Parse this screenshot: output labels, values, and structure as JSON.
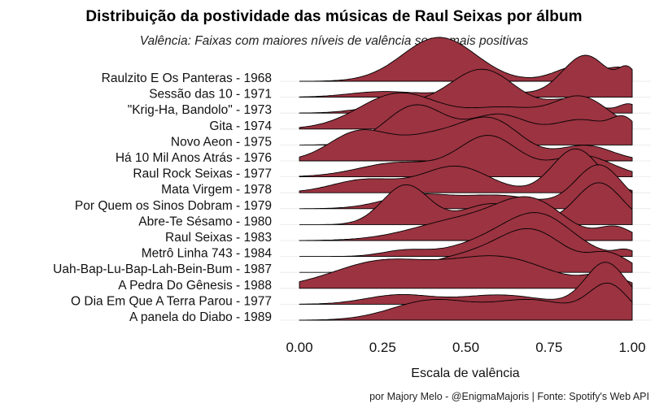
{
  "title": "Distribuição da postividade das músicas de Raul Seixas por álbum",
  "subtitle": "Valência: Faixas com maiores níveis de valência soam mais positivas",
  "caption": "por Majory Melo - @EnigmaMajoris | Fonte: Spotify's Web API",
  "colors": {
    "fill": "#9B3340",
    "outline": "#000000",
    "grid": "#e8e8e8"
  },
  "chart_data": {
    "type": "ridgeline",
    "xlabel": "Escala de valência",
    "xlim": [
      0,
      1
    ],
    "xticks": [
      "0.00",
      "0.25",
      "0.50",
      "0.75",
      "1.00"
    ],
    "grid": "horizontal baselines",
    "series": [
      {
        "name": "Raulzito E Os Panteras - 1968",
        "peaks": [
          [
            0.42,
            1.0,
            0.11
          ],
          [
            0.84,
            0.35,
            0.07
          ],
          [
            0.97,
            0.25,
            0.04
          ]
        ]
      },
      {
        "name": "Sessão das 10 - 1971",
        "peaks": [
          [
            0.25,
            0.12,
            0.1
          ],
          [
            0.55,
            0.18,
            0.1
          ],
          [
            0.86,
            0.9,
            0.07
          ],
          [
            0.99,
            0.5,
            0.03
          ]
        ]
      },
      {
        "name": "\"Krig-Ha, Bandolo\" - 1973",
        "peaks": [
          [
            0.3,
            0.2,
            0.1
          ],
          [
            0.55,
            1.0,
            0.1
          ],
          [
            0.82,
            0.3,
            0.07
          ],
          [
            0.99,
            0.2,
            0.03
          ]
        ]
      },
      {
        "name": "Gita - 1974",
        "peaks": [
          [
            0.3,
            0.6,
            0.12
          ],
          [
            0.62,
            0.35,
            0.12
          ],
          [
            0.85,
            0.5,
            0.08
          ]
        ]
      },
      {
        "name": "Novo Aeon - 1975",
        "peaks": [
          [
            0.35,
            0.8,
            0.09
          ],
          [
            0.6,
            0.6,
            0.09
          ],
          [
            0.85,
            0.5,
            0.09
          ],
          [
            0.98,
            0.4,
            0.04
          ]
        ]
      },
      {
        "name": "Há 10 Mil Anos Atrás - 1976",
        "peaks": [
          [
            0.18,
            0.75,
            0.09
          ],
          [
            0.4,
            0.6,
            0.1
          ],
          [
            0.58,
            1.0,
            0.09
          ],
          [
            0.86,
            0.4,
            0.08
          ]
        ]
      },
      {
        "name": "Raul Rock Seixas - 1977",
        "peaks": [
          [
            0.3,
            0.3,
            0.12
          ],
          [
            0.57,
            0.85,
            0.09
          ],
          [
            0.85,
            0.45,
            0.09
          ]
        ]
      },
      {
        "name": "Mata Virgem - 1978",
        "peaks": [
          [
            0.2,
            0.3,
            0.1
          ],
          [
            0.47,
            0.6,
            0.1
          ],
          [
            0.83,
            1.0,
            0.07
          ]
        ]
      },
      {
        "name": "Por Quem os Sinos Dobram - 1979",
        "peaks": [
          [
            0.35,
            0.3,
            0.1
          ],
          [
            0.6,
            0.3,
            0.12
          ],
          [
            0.9,
            1.0,
            0.07
          ]
        ]
      },
      {
        "name": "Abre-Te Sésamo - 1980",
        "peaks": [
          [
            0.32,
            0.85,
            0.07
          ],
          [
            0.58,
            0.45,
            0.09
          ],
          [
            0.9,
            0.9,
            0.07
          ]
        ]
      },
      {
        "name": "Raul Seixas - 1983",
        "peaks": [
          [
            0.5,
            0.5,
            0.15
          ],
          [
            0.7,
            0.8,
            0.1
          ],
          [
            0.95,
            0.3,
            0.05
          ]
        ]
      },
      {
        "name": "Metrô Linha 743 - 1984",
        "peaks": [
          [
            0.32,
            0.15,
            0.07
          ],
          [
            0.55,
            0.3,
            0.1
          ],
          [
            0.72,
            1.0,
            0.1
          ],
          [
            0.98,
            0.15,
            0.03
          ]
        ]
      },
      {
        "name": "Uah-Bap-Lu-Bap-Lah-Bein-Bum - 1987",
        "peaks": [
          [
            0.5,
            0.35,
            0.12
          ],
          [
            0.7,
            0.9,
            0.1
          ],
          [
            0.93,
            0.4,
            0.06
          ]
        ]
      },
      {
        "name": "A Pedra Do Gênesis - 1988",
        "peaks": [
          [
            0.25,
            0.35,
            0.15
          ],
          [
            0.6,
            0.4,
            0.15
          ],
          [
            0.92,
            0.15,
            0.06
          ]
        ]
      },
      {
        "name": "O Dia Em Que A Terra Parou - 1977",
        "peaks": [
          [
            0.3,
            0.2,
            0.1
          ],
          [
            0.6,
            0.2,
            0.12
          ],
          [
            0.92,
            0.9,
            0.06
          ]
        ]
      },
      {
        "name": "A panela do Diabo - 1989",
        "peaks": [
          [
            0.4,
            0.35,
            0.12
          ],
          [
            0.7,
            0.35,
            0.12
          ],
          [
            0.93,
            0.6,
            0.06
          ]
        ]
      }
    ]
  }
}
